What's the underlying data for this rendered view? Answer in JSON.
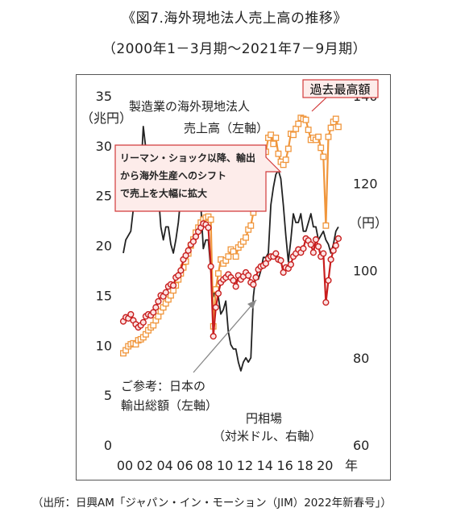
{
  "header": {
    "title": "《図7.海外現地法人売上高の推移》",
    "subtitle": "（2000年1－3月期～2021年7－9月期）"
  },
  "footer": {
    "source": "（出所：日興AM「ジャパン・イン・モーション（JIM）2022年新春号」）"
  },
  "annotations": {
    "peak": "過去最高額",
    "series_sales_line1": "製造業の海外現地法人",
    "series_sales_line2": "売上高（左軸）",
    "callout_line1": "リーマン・ショック以降、輸出",
    "callout_line2": "から海外生産へのシフト",
    "callout_line3": "で売上を大幅に拡大",
    "exports_line1": "ご参考：日本の",
    "exports_line2": "輸出総額（左軸）",
    "fx_line1": "円相場",
    "fx_line2": "（対米ドル、右軸）"
  },
  "colors": {
    "sales": "#f0963c",
    "exports": "#c81e1e",
    "fx": "#222222",
    "callout_border": "#d23a3a"
  },
  "chart_data": {
    "type": "line",
    "x_unit": "年",
    "left_axis": {
      "unit": "（兆円）",
      "ylim": [
        0,
        35
      ],
      "ticks": [
        0,
        5,
        10,
        15,
        20,
        25,
        30,
        35
      ]
    },
    "right_axis": {
      "unit": "（円）",
      "ylim": [
        60,
        140
      ],
      "ticks": [
        60,
        80,
        100,
        120,
        140
      ]
    },
    "x_ticks": [
      "00",
      "02",
      "04",
      "06",
      "08",
      "10",
      "12",
      "14",
      "16",
      "18",
      "20"
    ],
    "xlim": [
      2000,
      2021.75
    ],
    "series": [
      {
        "name": "製造業の海外現地法人売上高（左軸）",
        "axis": "left",
        "marker": "square",
        "x": [
          2000.0,
          2000.25,
          2000.5,
          2000.75,
          2001.0,
          2001.25,
          2001.5,
          2001.75,
          2002.0,
          2002.25,
          2002.5,
          2002.75,
          2003.0,
          2003.25,
          2003.5,
          2003.75,
          2004.0,
          2004.25,
          2004.5,
          2004.75,
          2005.0,
          2005.25,
          2005.5,
          2005.75,
          2006.0,
          2006.25,
          2006.5,
          2006.75,
          2007.0,
          2007.25,
          2007.5,
          2007.75,
          2008.0,
          2008.25,
          2008.5,
          2008.75,
          2009.0,
          2009.25,
          2009.5,
          2009.75,
          2010.0,
          2010.25,
          2010.5,
          2010.75,
          2011.0,
          2011.25,
          2011.5,
          2011.75,
          2012.0,
          2012.25,
          2012.5,
          2012.75,
          2013.0,
          2013.25,
          2013.5,
          2013.75,
          2014.0,
          2014.25,
          2014.5,
          2014.75,
          2015.0,
          2015.25,
          2015.5,
          2015.75,
          2016.0,
          2016.25,
          2016.5,
          2016.75,
          2017.0,
          2017.25,
          2017.5,
          2017.75,
          2018.0,
          2018.25,
          2018.5,
          2018.75,
          2019.0,
          2019.25,
          2019.5,
          2019.75,
          2020.0,
          2020.25,
          2020.5,
          2020.75,
          2021.0,
          2021.25,
          2021.5
        ],
        "values": [
          9.2,
          9.5,
          9.9,
          10.1,
          10.2,
          10.1,
          10.5,
          10.6,
          10.8,
          11.1,
          11.5,
          11.8,
          12.0,
          12.5,
          12.9,
          13.4,
          13.8,
          14.2,
          14.6,
          15.0,
          15.5,
          16.0,
          16.6,
          17.2,
          17.8,
          18.4,
          19.2,
          20.0,
          20.6,
          21.3,
          21.8,
          22.3,
          22.6,
          22.8,
          22.9,
          22.6,
          11.9,
          15.6,
          17.2,
          18.6,
          18.2,
          18.5,
          18.9,
          19.6,
          19.4,
          18.9,
          19.8,
          20.1,
          20.4,
          20.8,
          21.6,
          22.0,
          23.3,
          25.0,
          26.6,
          27.8,
          28.6,
          29.4,
          30.8,
          31.1,
          30.2,
          30.8,
          29.2,
          28.4,
          28.1,
          28.6,
          29.7,
          31.2,
          31.1,
          31.7,
          32.2,
          32.8,
          32.7,
          32.6,
          31.6,
          30.6,
          30.8,
          30.6,
          30.9,
          29.8,
          28.9,
          22.0,
          30.9,
          31.8,
          32.4,
          32.7,
          31.9
        ]
      },
      {
        "name": "ご参考：日本の輸出総額（左軸）",
        "axis": "left",
        "marker": "circle",
        "x": [
          2000.0,
          2000.25,
          2000.5,
          2000.75,
          2001.0,
          2001.25,
          2001.5,
          2001.75,
          2002.0,
          2002.25,
          2002.5,
          2002.75,
          2003.0,
          2003.25,
          2003.5,
          2003.75,
          2004.0,
          2004.25,
          2004.5,
          2004.75,
          2005.0,
          2005.25,
          2005.5,
          2005.75,
          2006.0,
          2006.25,
          2006.5,
          2006.75,
          2007.0,
          2007.25,
          2007.5,
          2007.75,
          2008.0,
          2008.25,
          2008.5,
          2008.75,
          2009.0,
          2009.25,
          2009.5,
          2009.75,
          2010.0,
          2010.25,
          2010.5,
          2010.75,
          2011.0,
          2011.25,
          2011.5,
          2011.75,
          2012.0,
          2012.25,
          2012.5,
          2012.75,
          2013.0,
          2013.25,
          2013.5,
          2013.75,
          2014.0,
          2014.25,
          2014.5,
          2014.75,
          2015.0,
          2015.25,
          2015.5,
          2015.75,
          2016.0,
          2016.25,
          2016.5,
          2016.75,
          2017.0,
          2017.25,
          2017.5,
          2017.75,
          2018.0,
          2018.25,
          2018.5,
          2018.75,
          2019.0,
          2019.25,
          2019.5,
          2019.75,
          2020.0,
          2020.25,
          2020.5,
          2020.75,
          2021.0,
          2021.25,
          2021.5
        ],
        "values": [
          12.4,
          12.8,
          12.7,
          13.1,
          12.5,
          12.1,
          11.8,
          12.0,
          12.3,
          12.9,
          13.1,
          13.0,
          13.3,
          13.8,
          14.4,
          15.0,
          14.9,
          15.3,
          15.9,
          16.1,
          16.0,
          16.8,
          17.0,
          17.5,
          18.6,
          19.0,
          19.5,
          20.1,
          20.4,
          20.9,
          21.4,
          21.8,
          22.2,
          22.1,
          21.8,
          17.9,
          10.9,
          13.8,
          15.2,
          16.3,
          16.6,
          16.8,
          17.1,
          16.8,
          16.5,
          15.9,
          17.0,
          16.6,
          16.9,
          17.3,
          17.0,
          16.3,
          16.1,
          16.8,
          17.6,
          17.9,
          18.0,
          18.2,
          18.7,
          18.9,
          18.9,
          19.2,
          18.6,
          18.5,
          17.3,
          17.8,
          17.7,
          18.1,
          18.9,
          19.2,
          19.6,
          19.3,
          19.7,
          20.7,
          20.5,
          20.1,
          19.3,
          20.6,
          19.9,
          18.9,
          19.2,
          14.3,
          16.5,
          18.6,
          19.5,
          20.0,
          20.7
        ]
      },
      {
        "name": "円相場（対米ドル、右軸）",
        "axis": "right",
        "marker": "none",
        "x": [
          2000.0,
          2000.25,
          2000.5,
          2000.75,
          2001.0,
          2001.25,
          2001.5,
          2001.75,
          2002.0,
          2002.25,
          2002.5,
          2002.75,
          2003.0,
          2003.25,
          2003.5,
          2003.75,
          2004.0,
          2004.25,
          2004.5,
          2004.75,
          2005.0,
          2005.25,
          2005.5,
          2005.75,
          2006.0,
          2006.25,
          2006.5,
          2006.75,
          2007.0,
          2007.25,
          2007.5,
          2007.75,
          2008.0,
          2008.25,
          2008.5,
          2008.75,
          2009.0,
          2009.25,
          2009.5,
          2009.75,
          2010.0,
          2010.25,
          2010.5,
          2010.75,
          2011.0,
          2011.25,
          2011.5,
          2011.75,
          2012.0,
          2012.25,
          2012.5,
          2012.75,
          2013.0,
          2013.25,
          2013.5,
          2013.75,
          2014.0,
          2014.25,
          2014.5,
          2014.75,
          2015.0,
          2015.25,
          2015.5,
          2015.75,
          2016.0,
          2016.25,
          2016.5,
          2016.75,
          2017.0,
          2017.25,
          2017.5,
          2017.75,
          2018.0,
          2018.25,
          2018.5,
          2018.75,
          2019.0,
          2019.25,
          2019.5,
          2019.75,
          2020.0,
          2020.25,
          2020.5,
          2020.75,
          2021.0,
          2021.25,
          2021.5
        ],
        "values": [
          104,
          107,
          108,
          109,
          114,
          121,
          122,
          122,
          133,
          128,
          120,
          123,
          119,
          118,
          118,
          110,
          107,
          110,
          110,
          106,
          104,
          107,
          111,
          117,
          117,
          114,
          116,
          118,
          119,
          121,
          119,
          115,
          105,
          107,
          107,
          100,
          94,
          96,
          94,
          90,
          91,
          93,
          86,
          83,
          82,
          82,
          79,
          77,
          79,
          80,
          79,
          80,
          94,
          99,
          98,
          100,
          103,
          103,
          104,
          115,
          119,
          122,
          123,
          121,
          115,
          108,
          102,
          107,
          113,
          111,
          111,
          113,
          109,
          109,
          111,
          113,
          110,
          110,
          107,
          108,
          109,
          107,
          106,
          104,
          106,
          109,
          110
        ]
      }
    ]
  }
}
